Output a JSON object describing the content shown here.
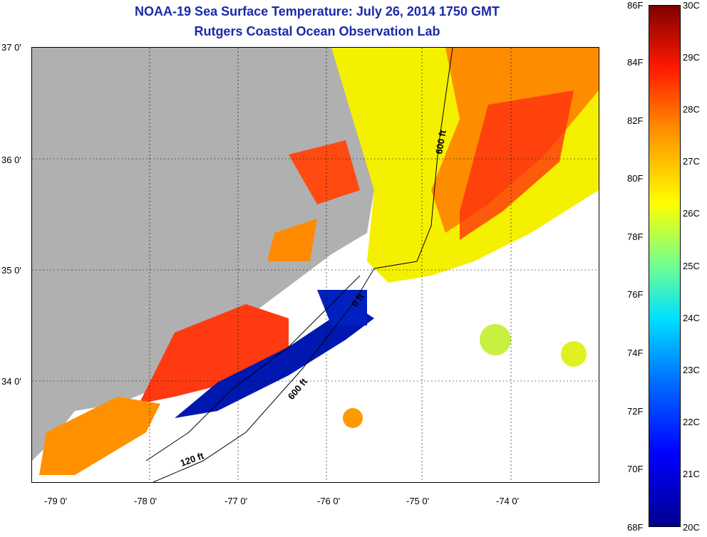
{
  "title": {
    "line1": "NOAA-19 Sea Surface Temperature:  July 26, 2014 1750 GMT",
    "line2": "Rutgers Coastal Ocean Observation Lab"
  },
  "axes": {
    "lat_labels": [
      "37 0'",
      "36 0'",
      "35 0'",
      "34 0'"
    ],
    "lon_labels": [
      "-79 0'",
      "-78 0'",
      "-77 0'",
      "-76 0'",
      "-75 0'",
      "-74 0'"
    ]
  },
  "contours": [
    "600 ft",
    "600 ft",
    "120 ft",
    "0 ft"
  ],
  "colorbar": {
    "fahrenheit": [
      "86F",
      "84F",
      "82F",
      "80F",
      "78F",
      "76F",
      "74F",
      "72F",
      "70F",
      "68F"
    ],
    "celsius": [
      "30C",
      "29C",
      "28C",
      "27C",
      "26C",
      "25C",
      "24C",
      "23C",
      "22C",
      "21C",
      "20C"
    ]
  },
  "colors": {
    "title": "#1a2aa8",
    "land": "#b0b0b0",
    "warm": "#ff3a10",
    "yellow": "#f5f000",
    "cold": "#0018b0"
  }
}
